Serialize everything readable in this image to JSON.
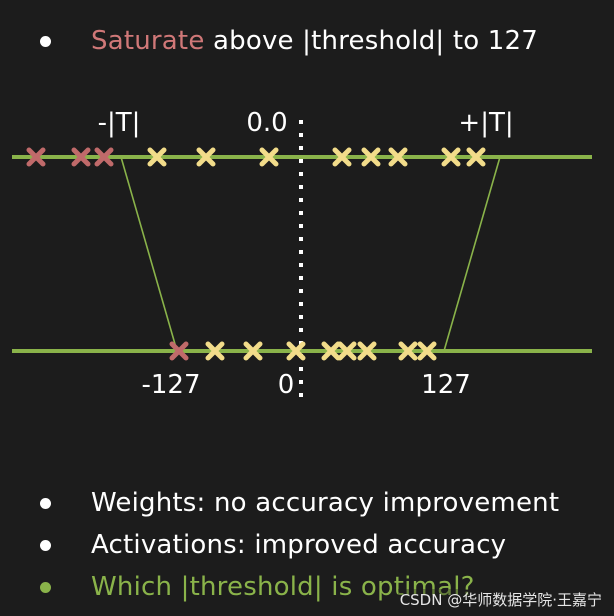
{
  "title": {
    "highlight": "Saturate",
    "rest": " above |threshold| to 127"
  },
  "top_axis": {
    "label_neg": "-|T|",
    "label_zero": "0.0",
    "label_pos": "+|T|"
  },
  "bottom_axis": {
    "label_neg": "-127",
    "label_zero": "0",
    "label_pos": "127"
  },
  "bullets": [
    {
      "text": "Weights: no accuracy improvement"
    },
    {
      "text": "Activations: improved accuracy"
    },
    {
      "text": "Which |threshold| is optimal?"
    }
  ],
  "watermark": "CSDN @华师数据学院·王嘉宁",
  "colors": {
    "background": "#1c1c1c",
    "axis_line": "#8ab34a",
    "saturated_marker": "#c06a6a",
    "value_marker": "#f2dc8a",
    "title_highlight": "#d07878",
    "question_text": "#8ab34a"
  }
}
